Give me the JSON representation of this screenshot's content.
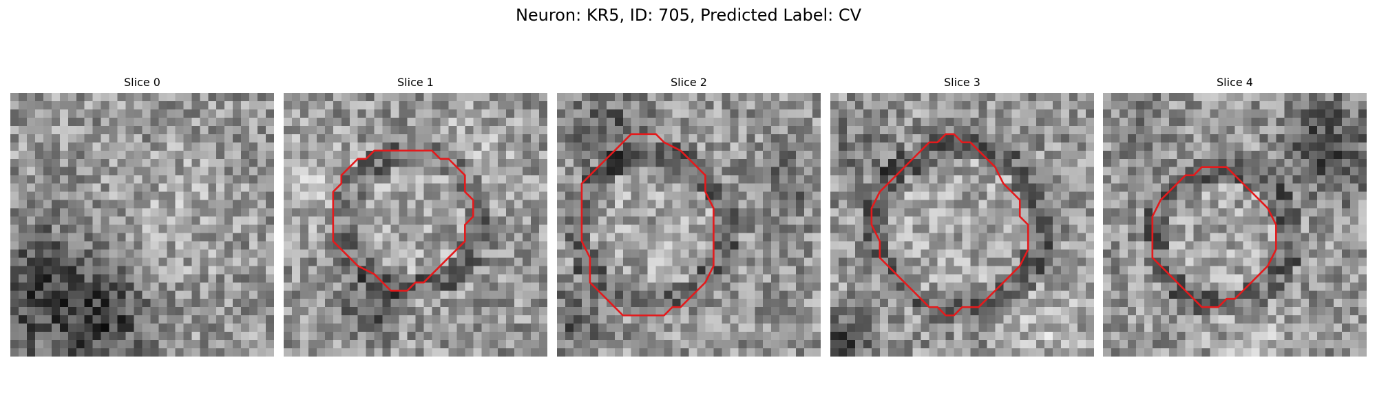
{
  "figure": {
    "title": "Neuron: KR5, ID: 705, Predicted Label: CV"
  },
  "contour_color": "#e41a1c",
  "panels": [
    {
      "label": "Slice 0",
      "has_contour": false,
      "contour_points": []
    },
    {
      "label": "Slice 1",
      "has_contour": true,
      "contour_points": [
        [
          15,
          7
        ],
        [
          18,
          7
        ],
        [
          19,
          8
        ],
        [
          20,
          8
        ],
        [
          21,
          9
        ],
        [
          22,
          10
        ],
        [
          22,
          12
        ],
        [
          23,
          13
        ],
        [
          23,
          15
        ],
        [
          22,
          16
        ],
        [
          22,
          18
        ],
        [
          21,
          19
        ],
        [
          20,
          20
        ],
        [
          19,
          21
        ],
        [
          18,
          22
        ],
        [
          17,
          23
        ],
        [
          16,
          23
        ],
        [
          15,
          24
        ],
        [
          13,
          24
        ],
        [
          12,
          23
        ],
        [
          11,
          22
        ],
        [
          9,
          21
        ],
        [
          7,
          19
        ],
        [
          6,
          18
        ],
        [
          6,
          14
        ],
        [
          6,
          12
        ],
        [
          7,
          11
        ],
        [
          7,
          10
        ],
        [
          8,
          9
        ],
        [
          9,
          8
        ],
        [
          10,
          8
        ],
        [
          11,
          7
        ],
        [
          13,
          7
        ]
      ]
    },
    {
      "label": "Slice 2",
      "has_contour": true,
      "contour_points": [
        [
          9,
          5
        ],
        [
          12,
          5
        ],
        [
          13,
          6
        ],
        [
          15,
          7
        ],
        [
          16,
          8
        ],
        [
          17,
          9
        ],
        [
          18,
          10
        ],
        [
          18,
          12
        ],
        [
          19,
          14
        ],
        [
          19,
          18
        ],
        [
          19,
          21
        ],
        [
          18,
          23
        ],
        [
          17,
          24
        ],
        [
          16,
          25
        ],
        [
          15,
          26
        ],
        [
          14,
          26
        ],
        [
          13,
          27
        ],
        [
          11,
          27
        ],
        [
          10,
          27
        ],
        [
          9,
          27
        ],
        [
          8,
          27
        ],
        [
          7,
          26
        ],
        [
          6,
          25
        ],
        [
          5,
          24
        ],
        [
          4,
          23
        ],
        [
          4,
          20
        ],
        [
          3,
          18
        ],
        [
          3,
          13
        ],
        [
          3,
          11
        ],
        [
          4,
          10
        ],
        [
          5,
          9
        ],
        [
          6,
          8
        ],
        [
          7,
          7
        ],
        [
          8,
          6
        ]
      ]
    },
    {
      "label": "Slice 3",
      "has_contour": true,
      "contour_points": [
        [
          14,
          5
        ],
        [
          15,
          5
        ],
        [
          16,
          6
        ],
        [
          17,
          6
        ],
        [
          18,
          7
        ],
        [
          19,
          8
        ],
        [
          20,
          9
        ],
        [
          21,
          11
        ],
        [
          22,
          12
        ],
        [
          23,
          13
        ],
        [
          23,
          15
        ],
        [
          24,
          16
        ],
        [
          24,
          19
        ],
        [
          23,
          21
        ],
        [
          22,
          22
        ],
        [
          21,
          23
        ],
        [
          20,
          24
        ],
        [
          19,
          25
        ],
        [
          18,
          26
        ],
        [
          17,
          26
        ],
        [
          16,
          26
        ],
        [
          15,
          27
        ],
        [
          14,
          27
        ],
        [
          13,
          26
        ],
        [
          12,
          26
        ],
        [
          11,
          25
        ],
        [
          10,
          24
        ],
        [
          9,
          23
        ],
        [
          8,
          22
        ],
        [
          7,
          21
        ],
        [
          6,
          20
        ],
        [
          6,
          18
        ],
        [
          5,
          16
        ],
        [
          5,
          14
        ],
        [
          6,
          12
        ],
        [
          7,
          11
        ],
        [
          8,
          10
        ],
        [
          9,
          9
        ],
        [
          10,
          8
        ],
        [
          11,
          7
        ],
        [
          12,
          6
        ],
        [
          13,
          6
        ]
      ]
    },
    {
      "label": "Slice 4",
      "has_contour": true,
      "contour_points": [
        [
          13,
          9
        ],
        [
          15,
          9
        ],
        [
          16,
          10
        ],
        [
          17,
          11
        ],
        [
          18,
          12
        ],
        [
          19,
          13
        ],
        [
          20,
          14
        ],
        [
          21,
          16
        ],
        [
          21,
          19
        ],
        [
          20,
          21
        ],
        [
          19,
          22
        ],
        [
          18,
          23
        ],
        [
          17,
          24
        ],
        [
          16,
          25
        ],
        [
          15,
          25
        ],
        [
          14,
          26
        ],
        [
          13,
          26
        ],
        [
          12,
          26
        ],
        [
          11,
          25
        ],
        [
          10,
          24
        ],
        [
          9,
          23
        ],
        [
          8,
          22
        ],
        [
          7,
          21
        ],
        [
          6,
          20
        ],
        [
          6,
          18
        ],
        [
          6,
          15
        ],
        [
          7,
          13
        ],
        [
          8,
          12
        ],
        [
          9,
          11
        ],
        [
          10,
          10
        ],
        [
          11,
          10
        ],
        [
          12,
          9
        ]
      ]
    }
  ]
}
